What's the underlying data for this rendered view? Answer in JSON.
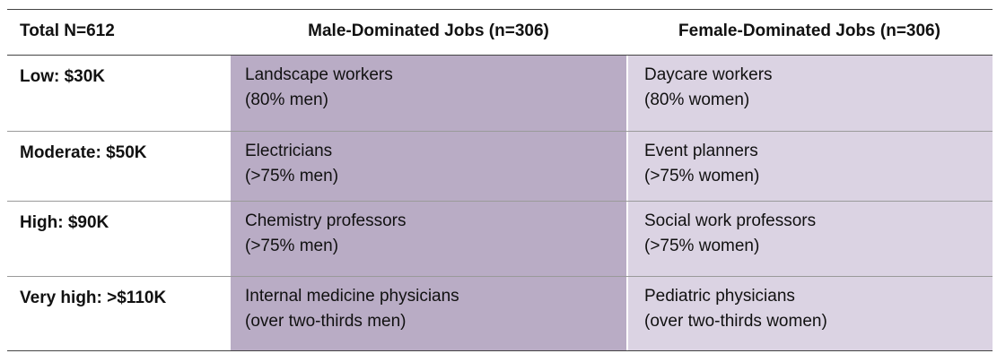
{
  "table": {
    "headers": [
      "Total N=612",
      "Male-Dominated Jobs (n=306)",
      "Female-Dominated Jobs (n=306)"
    ],
    "rows": [
      {
        "level": "Low: $30K",
        "male": [
          "Landscape workers",
          "(80% men)"
        ],
        "female": [
          "Daycare workers",
          "(80% women)"
        ]
      },
      {
        "level": "Moderate: $50K",
        "male": [
          "Electricians",
          "(>75% men)"
        ],
        "female": [
          "Event planners",
          "(>75% women)"
        ]
      },
      {
        "level": "High: $90K",
        "male": [
          "Chemistry professors",
          "(>75% men)"
        ],
        "female": [
          "Social work professors",
          "(>75% women)"
        ]
      },
      {
        "level": "Very high: >$110K",
        "male": [
          "Internal medicine physicians",
          "(over two-thirds men)"
        ],
        "female": [
          "Pediatric physicians",
          "(over two-thirds women)"
        ]
      }
    ],
    "colors": {
      "male_cell_bg": "#b9acc5",
      "female_cell_bg": "#dbd3e3",
      "rule": "#444444"
    }
  }
}
